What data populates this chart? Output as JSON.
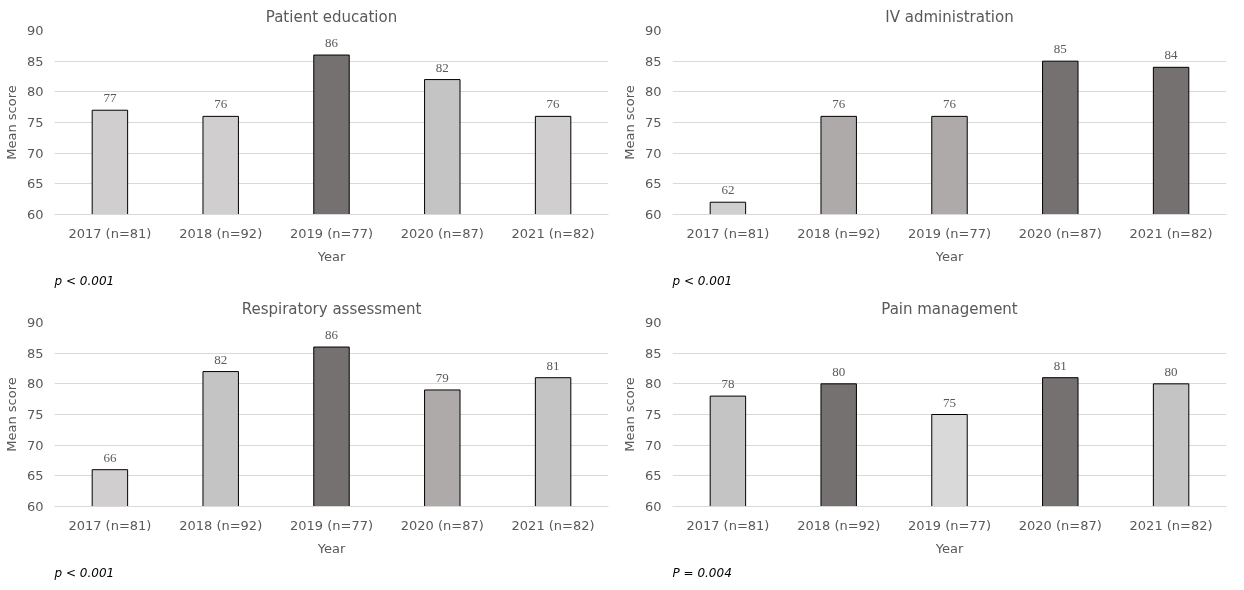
{
  "chart_data": [
    {
      "type": "bar",
      "title": "Patient education",
      "xlabel": "Year",
      "ylabel": "Mean score",
      "categories": [
        "2017 (n=81)",
        "2018 (n=92)",
        "2019 (n=77)",
        "2020 (n=87)",
        "2021 (n=82)"
      ],
      "values": [
        77,
        76,
        86,
        82,
        76
      ],
      "colors": [
        "#d0cece",
        "#d0cece",
        "#767171",
        "#c4c4c4",
        "#d0cece"
      ],
      "ylim": [
        60,
        90
      ],
      "yticks": [
        60,
        65,
        70,
        75,
        80,
        85,
        90
      ],
      "grid": "y",
      "data_labels": true,
      "annotations": [
        "p < 0.001"
      ]
    },
    {
      "type": "bar",
      "title": "IV administration",
      "xlabel": "Year",
      "ylabel": "Mean score",
      "categories": [
        "2017 (n=81)",
        "2018 (n=92)",
        "2019 (n=77)",
        "2020 (n=87)",
        "2021 (n=82)"
      ],
      "values": [
        62,
        76,
        76,
        85,
        84
      ],
      "colors": [
        "#d0cece",
        "#aeaaaa",
        "#aeaaaa",
        "#767171",
        "#767171"
      ],
      "ylim": [
        60,
        90
      ],
      "yticks": [
        60,
        65,
        70,
        75,
        80,
        85,
        90
      ],
      "grid": "y",
      "data_labels": true,
      "annotations": [
        "p < 0.001"
      ]
    },
    {
      "type": "bar",
      "title": "Respiratory assessment",
      "xlabel": "Year",
      "ylabel": "Mean score",
      "categories": [
        "2017 (n=81)",
        "2018 (n=92)",
        "2019 (n=77)",
        "2020 (n=87)",
        "2021 (n=82)"
      ],
      "values": [
        66,
        82,
        86,
        79,
        81
      ],
      "colors": [
        "#d0cece",
        "#c4c4c4",
        "#767171",
        "#aeaaaa",
        "#c4c4c4"
      ],
      "ylim": [
        60,
        90
      ],
      "yticks": [
        60,
        65,
        70,
        75,
        80,
        85,
        90
      ],
      "grid": "y",
      "data_labels": true,
      "annotations": [
        "p < 0.001"
      ]
    },
    {
      "type": "bar",
      "title": "Pain management",
      "xlabel": "Year",
      "ylabel": "Mean score",
      "categories": [
        "2017 (n=81)",
        "2018 (n=92)",
        "2019 (n=77)",
        "2020 (n=87)",
        "2021 (n=82)"
      ],
      "values": [
        78,
        80,
        75,
        81,
        80
      ],
      "colors": [
        "#c4c4c4",
        "#767171",
        "#d9d9d9",
        "#767171",
        "#c4c4c4"
      ],
      "ylim": [
        60,
        90
      ],
      "yticks": [
        60,
        65,
        70,
        75,
        80,
        85,
        90
      ],
      "grid": "y",
      "data_labels": true,
      "annotations": [
        "P = 0.004"
      ]
    }
  ]
}
